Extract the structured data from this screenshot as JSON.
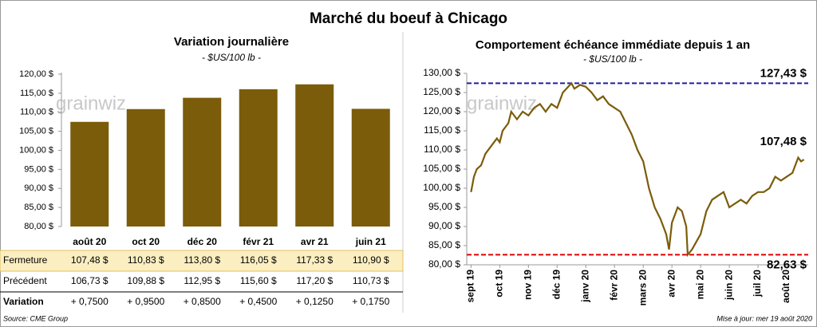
{
  "title": "Marché du boeuf à Chicago",
  "watermark": "grainwiz",
  "source": "Source: CME Group",
  "updated": "Mise à jour: mer 19 août 2020",
  "chart_data": [
    {
      "type": "bar",
      "title": "Variation journalière",
      "subtitle": "- $US/100 lb -",
      "categories": [
        "août 20",
        "oct 20",
        "déc 20",
        "févr 21",
        "avr 21",
        "juin 21"
      ],
      "values": [
        107.48,
        110.83,
        113.8,
        116.05,
        117.33,
        110.9
      ],
      "value_labels": [
        "107,48  $",
        "110,83  $",
        "113,80  $",
        "116,05  $",
        "117,33  $",
        "110,90  $"
      ],
      "color": "#7a5c0a",
      "grid": false,
      "ylim": [
        80,
        120
      ],
      "yticks": [
        {
          "value": 80,
          "label": "80,00 $"
        },
        {
          "value": 85,
          "label": "85,00 $"
        },
        {
          "value": 90,
          "label": "90,00 $"
        },
        {
          "value": 95,
          "label": "95,00 $"
        },
        {
          "value": 100,
          "label": "100,00 $"
        },
        {
          "value": 105,
          "label": "105,00 $"
        },
        {
          "value": 110,
          "label": "110,00 $"
        },
        {
          "value": 115,
          "label": "115,00 $"
        },
        {
          "value": 120,
          "label": "120,00 $"
        }
      ]
    },
    {
      "type": "line",
      "title": "Comportement  échéance immédiate depuis 1 an",
      "subtitle": "- $US/100 lb -",
      "color": "#7a5c0a",
      "grid": false,
      "x": [
        0,
        0.1,
        0.2,
        0.35,
        0.5,
        0.7,
        0.9,
        1.0,
        1.1,
        1.3,
        1.4,
        1.6,
        1.8,
        2.0,
        2.2,
        2.4,
        2.6,
        2.8,
        3.0,
        3.2,
        3.5,
        3.6,
        3.8,
        4.0,
        4.2,
        4.4,
        4.6,
        4.8,
        5.0,
        5.2,
        5.4,
        5.6,
        5.8,
        6.0,
        6.2,
        6.4,
        6.6,
        6.8,
        6.9,
        7.0,
        7.2,
        7.35,
        7.5,
        7.55,
        7.7,
        7.85,
        8.0,
        8.2,
        8.4,
        8.6,
        8.8,
        9.0,
        9.2,
        9.4,
        9.6,
        9.8,
        10.0,
        10.2,
        10.4,
        10.6,
        10.8,
        11.0,
        11.2,
        11.4,
        11.5,
        11.6
      ],
      "values": [
        99,
        103,
        105,
        106,
        109,
        111,
        113,
        112,
        115,
        117,
        120,
        118,
        120,
        119,
        121,
        122,
        120,
        122,
        121,
        125,
        127.43,
        126,
        127,
        126.5,
        125,
        123,
        124,
        122,
        121,
        120,
        117,
        114,
        110,
        107,
        100,
        95,
        92,
        88,
        84,
        91,
        95,
        94,
        90,
        82.63,
        84,
        86,
        88,
        94,
        97,
        98,
        99,
        95,
        96,
        97,
        96,
        98,
        99,
        99,
        100,
        103,
        102,
        103,
        104,
        108,
        107,
        107.48
      ],
      "last_label": "107,48 $",
      "hlines": [
        {
          "value": 127.43,
          "label": "127,43 $",
          "color": "#1f1fa0"
        },
        {
          "value": 82.63,
          "label": "82,63 $",
          "color": "#e00000"
        }
      ],
      "xlim": [
        -0.15,
        11.75
      ],
      "xticks": [
        {
          "value": 0,
          "label": "sept 19"
        },
        {
          "value": 1,
          "label": "oct 19"
        },
        {
          "value": 2,
          "label": "nov 19"
        },
        {
          "value": 3,
          "label": "déc 19"
        },
        {
          "value": 4,
          "label": "janv 20"
        },
        {
          "value": 5,
          "label": "févr 20"
        },
        {
          "value": 6,
          "label": "mars 20"
        },
        {
          "value": 7,
          "label": "avr 20"
        },
        {
          "value": 8,
          "label": "mai 20"
        },
        {
          "value": 9,
          "label": "juin 20"
        },
        {
          "value": 10,
          "label": "juil 20"
        },
        {
          "value": 11,
          "label": "août 20"
        }
      ],
      "ylim": [
        80,
        130
      ],
      "yticks": [
        {
          "value": 80,
          "label": "80,00 $"
        },
        {
          "value": 85,
          "label": "85,00 $"
        },
        {
          "value": 90,
          "label": "90,00 $"
        },
        {
          "value": 95,
          "label": "95,00 $"
        },
        {
          "value": 100,
          "label": "100,00 $"
        },
        {
          "value": 105,
          "label": "105,00 $"
        },
        {
          "value": 110,
          "label": "110,00 $"
        },
        {
          "value": 115,
          "label": "115,00 $"
        },
        {
          "value": 120,
          "label": "120,00 $"
        },
        {
          "value": 125,
          "label": "125,00 $"
        },
        {
          "value": 130,
          "label": "130,00 $"
        }
      ]
    }
  ],
  "table": {
    "rows": [
      {
        "name": "Fermeture"
      },
      {
        "name": "Précédent",
        "cells": [
          "106,73  $",
          "109,88  $",
          "112,95  $",
          "115,60  $",
          "117,20  $",
          "110,73  $"
        ]
      },
      {
        "name": "Variation",
        "cells": [
          "+ 0,7500",
          "+ 0,9500",
          "+ 0,8500",
          "+ 0,4500",
          "+ 0,1250",
          "+ 0,1750"
        ]
      }
    ]
  }
}
